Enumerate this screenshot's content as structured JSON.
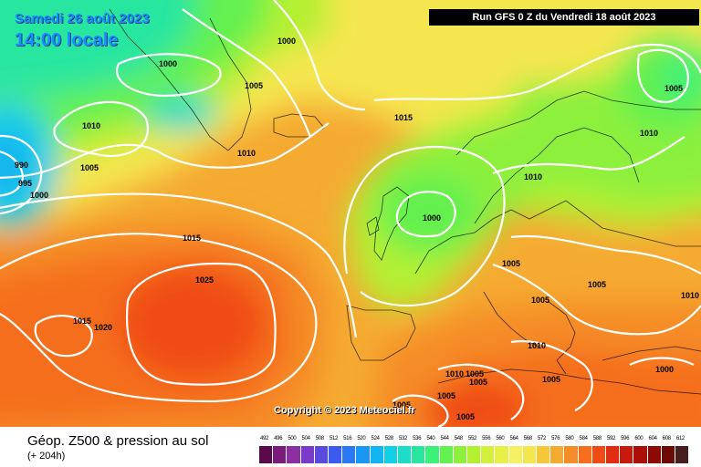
{
  "header": {
    "run_info": "Run GFS 0 Z du Vendredi 18 août 2023",
    "valid_date": "Samedi 26 août 2023",
    "valid_time": "14:00 locale"
  },
  "copyright": "Copyright © 2023 Meteociel.fr",
  "legend": {
    "title": "Géop. Z500 & pression au sol",
    "subtitle": "(+ 204h)",
    "ticks": [
      "492",
      "496",
      "500",
      "504",
      "508",
      "512",
      "516",
      "520",
      "524",
      "528",
      "532",
      "536",
      "540",
      "544",
      "548",
      "552",
      "556",
      "560",
      "564",
      "568",
      "572",
      "576",
      "580",
      "584",
      "588",
      "592",
      "596",
      "600",
      "604",
      "608",
      "612"
    ],
    "colors": [
      "#5a0a4a",
      "#7a1a7a",
      "#8c2fa0",
      "#7a3cc8",
      "#5a4ae0",
      "#3a5af0",
      "#2a78f5",
      "#1a96f5",
      "#14b4f0",
      "#14d0e6",
      "#1edcc8",
      "#28e6a0",
      "#3cf078",
      "#64f050",
      "#8cf03c",
      "#b4f032",
      "#d2f03c",
      "#e6f046",
      "#f5f064",
      "#f5e650",
      "#f5c83c",
      "#f5aa32",
      "#f58c28",
      "#f56e1e",
      "#f04b14",
      "#e12d0f",
      "#c8190a",
      "#aa0f08",
      "#8c0a05",
      "#6e0a05",
      "#461e1e"
    ]
  },
  "map": {
    "isobar_labels": [
      "1000",
      "1000",
      "1005",
      "1010",
      "1005",
      "1010",
      "990",
      "995",
      "1000",
      "1015",
      "1025",
      "1015",
      "1020",
      "1015",
      "1000",
      "1010",
      "1010",
      "1005",
      "1005",
      "1005",
      "1005",
      "1010",
      "1010",
      "1000",
      "1005",
      "1010",
      "1005",
      "1005",
      "1005",
      "1005",
      "1005"
    ]
  }
}
